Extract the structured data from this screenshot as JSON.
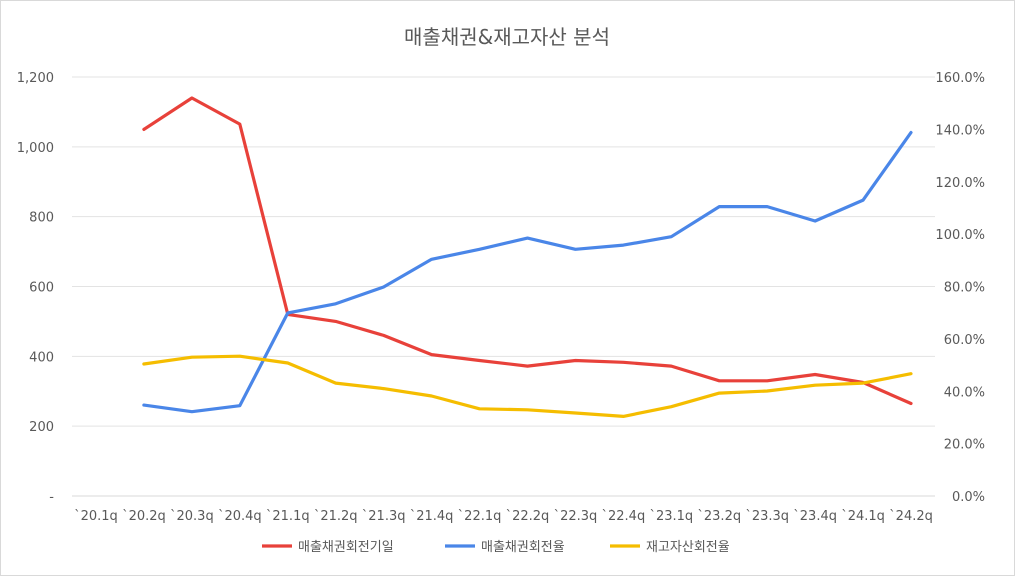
{
  "chart_data": {
    "type": "line",
    "title": "매출채권&재고자산 분석",
    "categories": [
      "`20.1q",
      "`20.2q",
      "`20.3q",
      "`20.4q",
      "`21.1q",
      "`21.2q",
      "`21.3q",
      "`21.4q",
      "`22.1q",
      "`22.2q",
      "`22.3q",
      "`22.4q",
      "`23.1q",
      "`23.2q",
      "`23.3q",
      "`23.4q",
      "`24.1q",
      "`24.2q"
    ],
    "y_left": {
      "range": [
        0,
        1200
      ],
      "ticks": [
        0,
        200,
        400,
        600,
        800,
        1000,
        1200
      ],
      "tick_labels": [
        "-",
        "200",
        "400",
        "600",
        "800",
        "1,000",
        "1,200"
      ]
    },
    "y_right": {
      "range": [
        0,
        160
      ],
      "ticks": [
        0,
        20,
        40,
        60,
        80,
        100,
        120,
        140,
        160
      ],
      "tick_labels": [
        "0.0%",
        "20.0%",
        "40.0%",
        "60.0%",
        "80.0%",
        "100.0%",
        "120.0%",
        "140.0%",
        "160.0%"
      ]
    },
    "grid": true,
    "legend_position": "bottom",
    "series": [
      {
        "name": "매출채권회전기일",
        "axis": "left",
        "color": "#e8413a",
        "values": [
          null,
          1050,
          1140,
          1065,
          520,
          500,
          460,
          405,
          388,
          372,
          388,
          383,
          372,
          330,
          330,
          348,
          325,
          265
        ]
      },
      {
        "name": "매출채권회전율",
        "axis": "right",
        "color": "#4a86e8",
        "values": [
          null,
          34.7,
          32.2,
          34.5,
          69.9,
          73.4,
          79.8,
          90.4,
          94.2,
          98.5,
          94.2,
          95.8,
          99.0,
          110.5,
          110.5,
          105.0,
          113.0,
          138.8
        ]
      },
      {
        "name": "재고자산회전율",
        "axis": "right",
        "color": "#f5bd00",
        "values": [
          null,
          50.4,
          53.0,
          53.4,
          50.8,
          43.1,
          41.0,
          38.2,
          33.3,
          32.9,
          31.7,
          30.4,
          34.1,
          39.3,
          40.1,
          42.3,
          43.1,
          46.7
        ]
      }
    ]
  }
}
